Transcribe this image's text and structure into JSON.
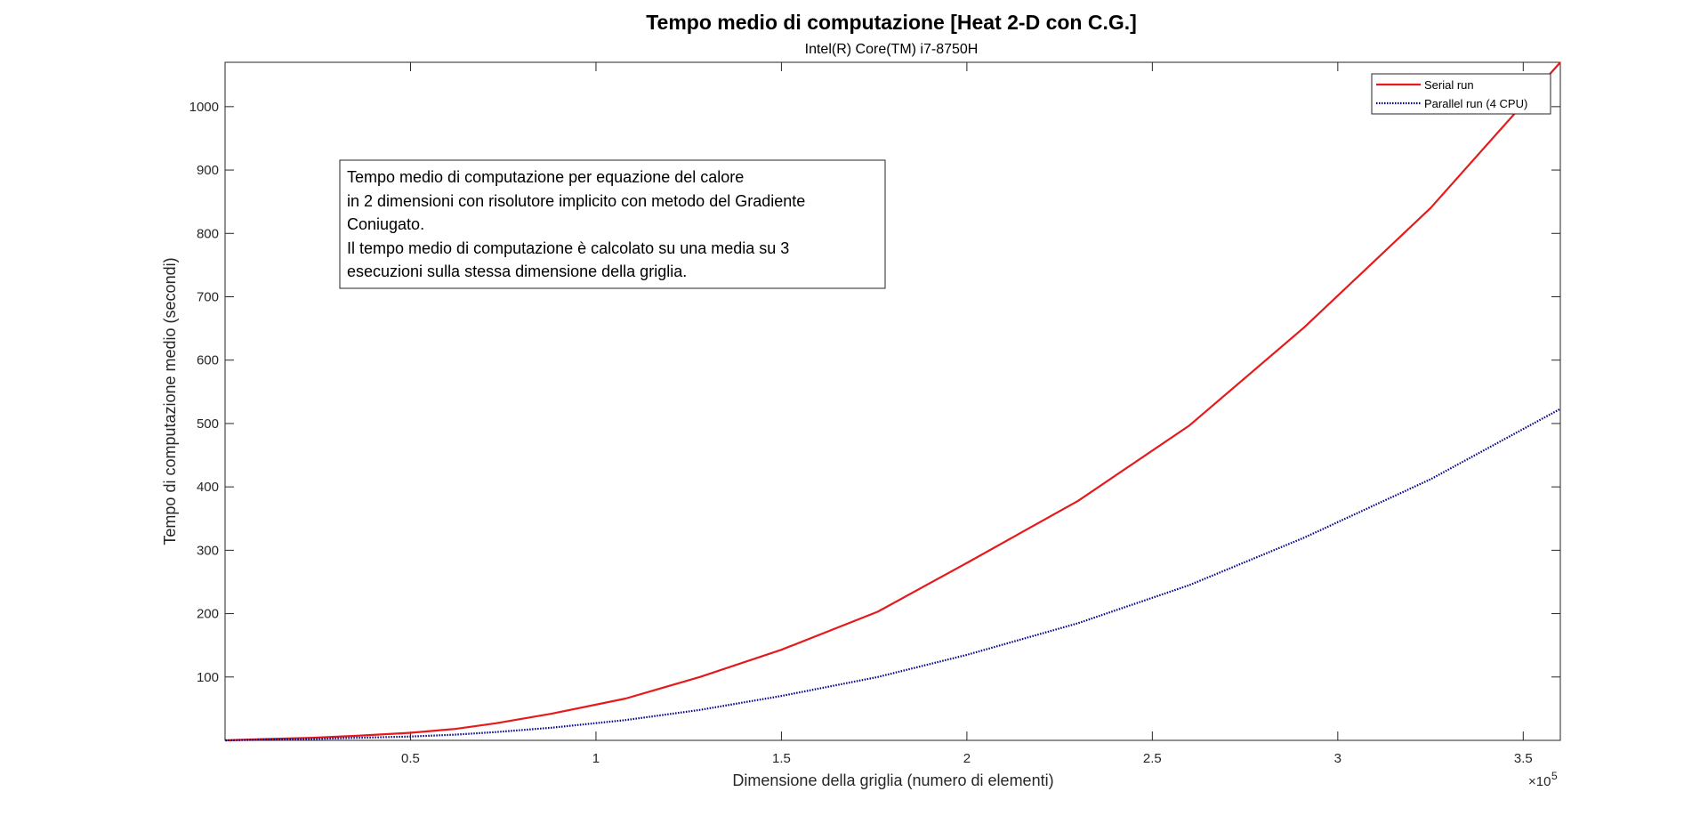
{
  "chart_data": {
    "type": "line",
    "title": "Tempo medio di computazione [Heat 2-D con C.G.]",
    "subtitle": "Intel(R) Core(TM) i7-8750H",
    "xlabel": "Dimensione della griglia (numero di elementi)",
    "ylabel": "Tempo di computazione medio (secondi)",
    "x_exponent_label": "×10",
    "x_exponent_power": "5",
    "xlim": [
      0,
      360000
    ],
    "ylim": [
      0,
      1070
    ],
    "x_tick_values": [
      50000,
      100000,
      150000,
      200000,
      250000,
      300000,
      350000
    ],
    "x_tick_labels": [
      "0.5",
      "1",
      "1.5",
      "2",
      "2.5",
      "3",
      "3.5"
    ],
    "y_tick_values": [
      100,
      200,
      300,
      400,
      500,
      600,
      700,
      800,
      900,
      1000
    ],
    "y_tick_labels": [
      "100",
      "200",
      "300",
      "400",
      "500",
      "600",
      "700",
      "800",
      "900",
      "1000"
    ],
    "grid": false,
    "legend_position": "top-right",
    "series": [
      {
        "name": "Serial run",
        "color": "#e41a1c",
        "style": "solid",
        "x": [
          100,
          10000,
          23000,
          35000,
          50000,
          62000,
          73000,
          88000,
          108000,
          128000,
          150000,
          176000,
          200000,
          230000,
          260000,
          291000,
          325000,
          360000
        ],
        "y": [
          0,
          2,
          4,
          7,
          12,
          18,
          27,
          42,
          66,
          100,
          143,
          203,
          280,
          378,
          497,
          652,
          840,
          1070
        ]
      },
      {
        "name": "Parallel run (4 CPU)",
        "color": "#00008b",
        "style": "dotted",
        "x": [
          100,
          10000,
          23000,
          35000,
          50000,
          62000,
          73000,
          88000,
          108000,
          128000,
          150000,
          176000,
          200000,
          230000,
          260000,
          291000,
          325000,
          360000
        ],
        "y": [
          0,
          1,
          2,
          4,
          6,
          9,
          13,
          20,
          32,
          48,
          70,
          100,
          135,
          185,
          245,
          320,
          412,
          523
        ]
      }
    ],
    "annotation_lines": [
      "Tempo medio di computazione per equazione del calore",
      "in 2 dimensioni con risolutore implicito con metodo del Gradiente",
      "Coniugato.",
      "Il tempo medio di computazione è calcolato su una media su 3",
      "esecuzioni sulla stessa dimensione della griglia."
    ]
  }
}
